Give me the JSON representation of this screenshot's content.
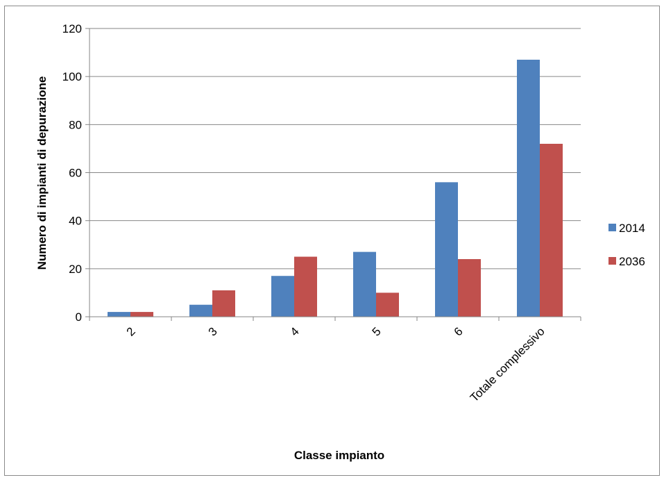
{
  "chart_data": {
    "type": "bar",
    "title": "",
    "xlabel": "Classe impianto",
    "ylabel": "Numero di impianti di depurazione",
    "categories": [
      "2",
      "3",
      "4",
      "5",
      "6",
      "Totale complessivo"
    ],
    "series": [
      {
        "name": "2014",
        "values": [
          2,
          5,
          17,
          27,
          56,
          107
        ],
        "color": "#4f81bd"
      },
      {
        "name": "2036",
        "values": [
          2,
          11,
          25,
          10,
          24,
          72
        ],
        "color": "#c0504d"
      }
    ],
    "ylim": [
      0,
      120
    ],
    "yticks": [
      "0",
      "20",
      "40",
      "60",
      "80",
      "100",
      "120"
    ],
    "grid": true,
    "legend_position": "right"
  }
}
